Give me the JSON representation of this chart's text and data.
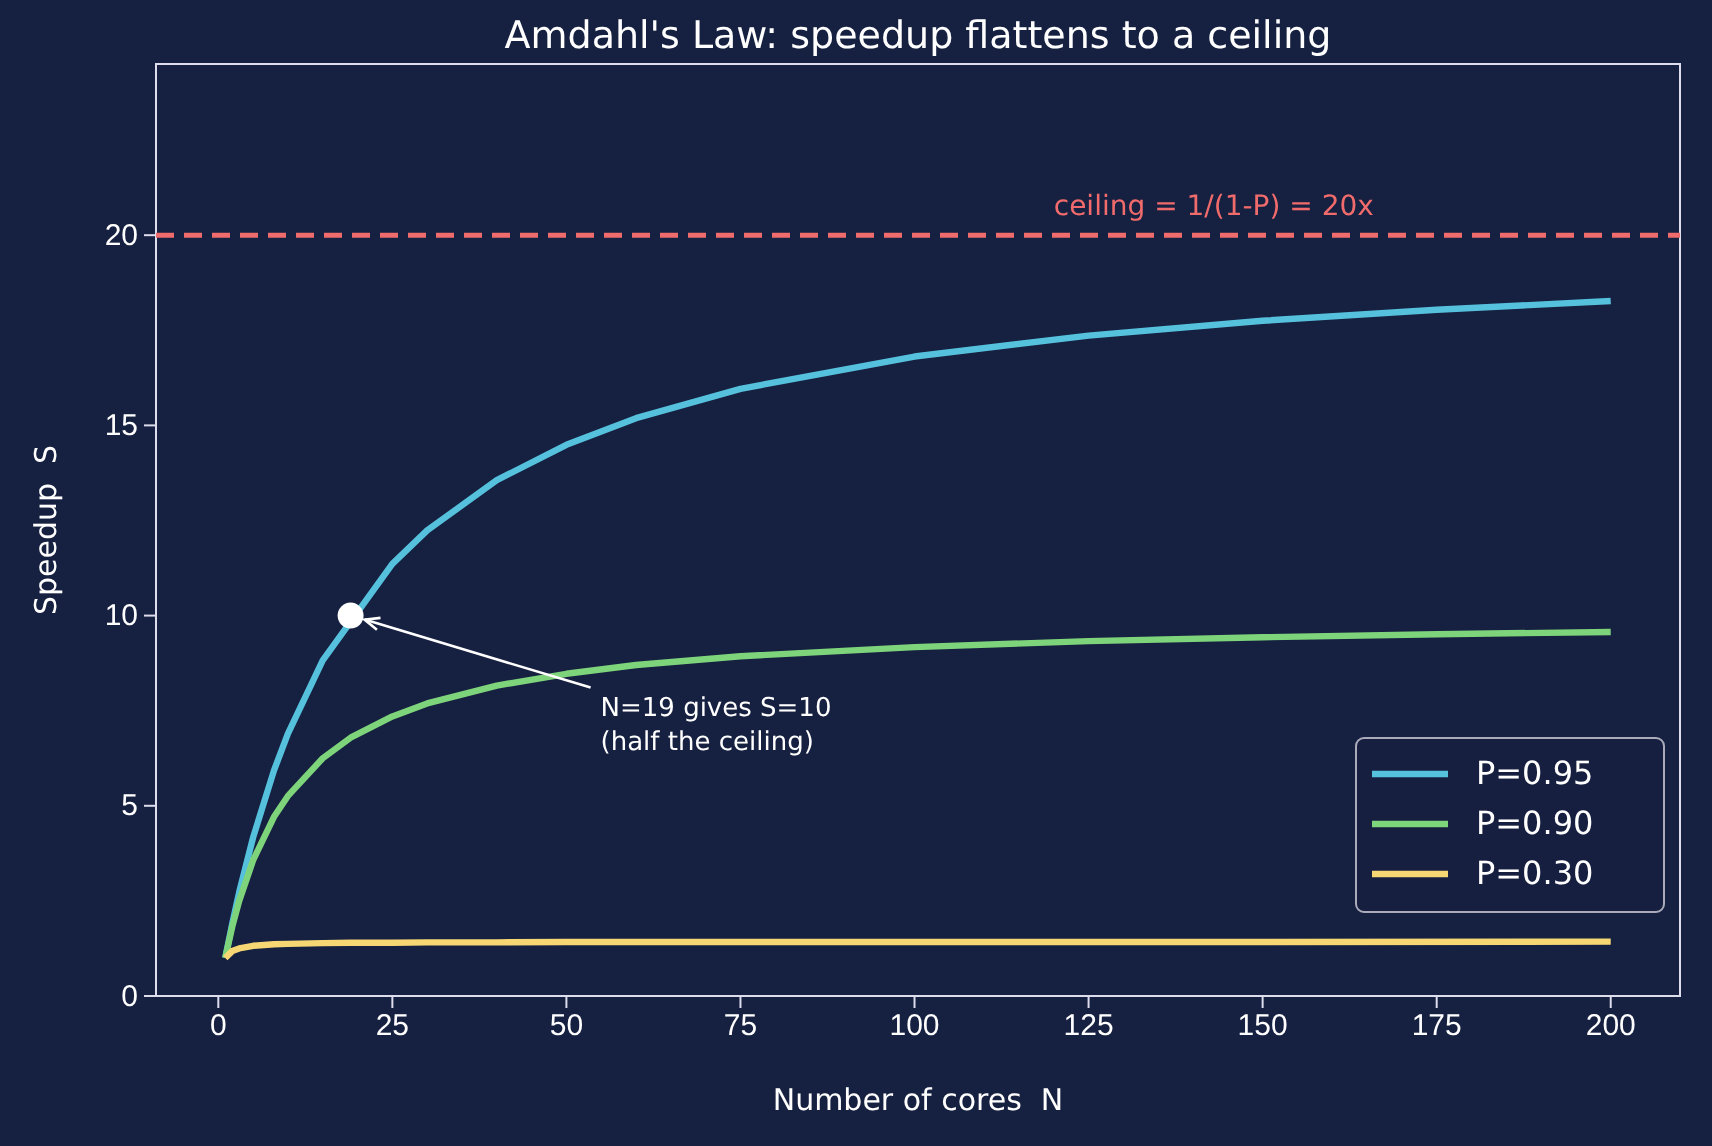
{
  "chart_data": {
    "type": "line",
    "title": "Amdahl's Law: speedup flattens to a ceiling",
    "xlabel": "Number of cores  N",
    "ylabel": "Speedup  S",
    "xlim": [
      -8.95,
      209.95
    ],
    "xticks": [
      0,
      25,
      50,
      75,
      100,
      125,
      150,
      175,
      200
    ],
    "ylim": [
      0,
      24.5
    ],
    "yticks": [
      0,
      5,
      10,
      15,
      20
    ],
    "grid": false,
    "legend": "bottom right",
    "series": [
      {
        "name": "P=0.95",
        "color": "#56c1dc",
        "x": [
          1,
          2,
          3,
          5,
          8,
          10,
          15,
          25,
          30,
          40,
          50,
          60,
          75,
          100,
          125,
          150,
          175,
          200
        ],
        "values": [
          1,
          1.9,
          2.73,
          4.17,
          5.93,
          6.9,
          8.82,
          11.36,
          12.24,
          13.56,
          14.49,
          15.19,
          15.96,
          16.81,
          17.36,
          17.75,
          18.04,
          18.27
        ]
      },
      {
        "name": "P=0.90",
        "color": "#7ed47a",
        "x": [
          1,
          2,
          3,
          5,
          8,
          10,
          15,
          19,
          25,
          30,
          40,
          50,
          60,
          75,
          100,
          125,
          150,
          175,
          200
        ],
        "values": [
          1,
          1.82,
          2.5,
          3.57,
          4.71,
          5.26,
          6.25,
          6.79,
          7.35,
          7.69,
          8.16,
          8.47,
          8.7,
          8.93,
          9.17,
          9.33,
          9.43,
          9.51,
          9.57
        ]
      },
      {
        "name": "P=0.30",
        "color": "#f7d774",
        "x": [
          1,
          2,
          3,
          5,
          8,
          10,
          15,
          19,
          25,
          30,
          40,
          50,
          75,
          100,
          150,
          200
        ],
        "values": [
          1,
          1.18,
          1.25,
          1.32,
          1.36,
          1.37,
          1.39,
          1.4,
          1.4,
          1.41,
          1.41,
          1.42,
          1.42,
          1.42,
          1.42,
          1.43
        ]
      },
      {
        "type": "scatter",
        "color": "#ffffff",
        "marker": "circle",
        "x": [
          19
        ],
        "values": [
          10
        ]
      }
    ],
    "ref_lines": [
      {
        "axis": "y",
        "value": 20,
        "label": "ceiling = 1/(1-P) = 20x",
        "color": "#f06b6b",
        "line_style": "dashed"
      }
    ],
    "annotations": [
      {
        "text": "N=19 gives S=10\n(half the ceiling)",
        "x": 19,
        "y": 10
      }
    ]
  }
}
